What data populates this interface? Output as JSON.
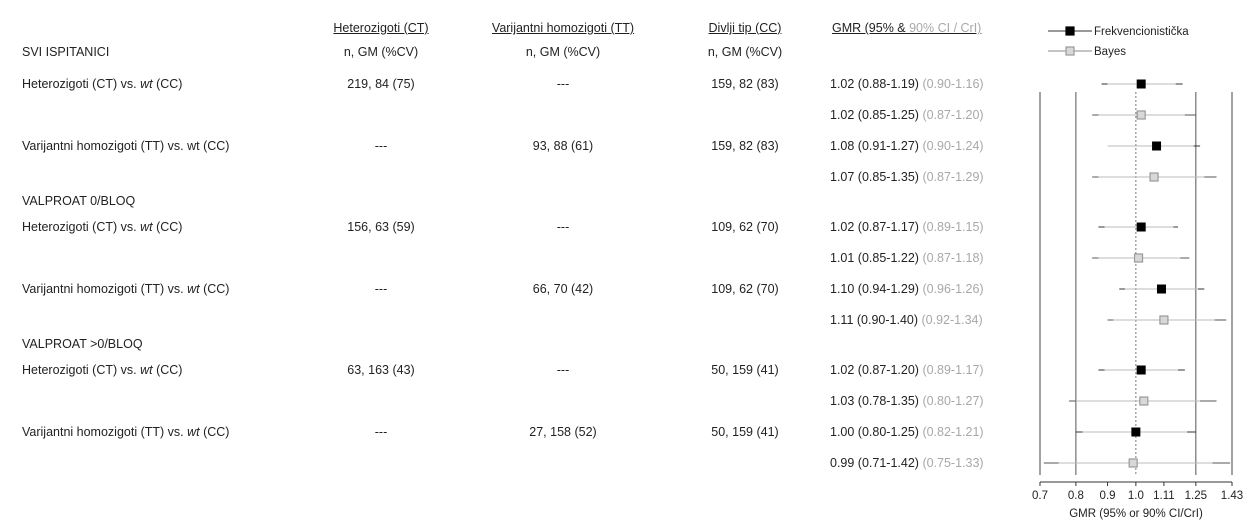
{
  "headers": {
    "col_het": "Heterozigoti (CT)",
    "col_hom": "Varijantni homozigoti (TT)",
    "col_wt": "Divlji tip (CC)",
    "col_gmr_a": "GMR (95% & ",
    "col_gmr_b": "90% CI / CrI)",
    "sub_het": "n, GM (%CV)",
    "sub_hom": "n, GM (%CV)",
    "sub_wt": "n, GM (%CV)"
  },
  "sections": [
    {
      "title": "SVI ISPITANICI",
      "rows": [
        {
          "label_a": "Heterozigoti (CT) vs. ",
          "label_i": "wt",
          "label_b": " (CC)",
          "het": "219, 84 (75)",
          "hom": "---",
          "wt": "159, 82 (83)",
          "freq_main": "1.02 (0.88-1.19)",
          "freq_90": "(0.90-1.16)",
          "bay_main": "1.02 (0.85-1.25)",
          "bay_90": "(0.87-1.20)"
        },
        {
          "label_a": "Varijantni homozigoti (TT) vs. wt (CC)",
          "label_i": "",
          "label_b": "",
          "het": "---",
          "hom": "93, 88 (61)",
          "wt": "159, 82 (83)",
          "freq_main": "1.08 (0.91-1.27)",
          "freq_90": "(0.90-1.24)",
          "bay_main": "1.07 (0.85-1.35)",
          "bay_90": "(0.87-1.29)"
        }
      ]
    },
    {
      "title": "VALPROAT  0/BLOQ",
      "rows": [
        {
          "label_a": "Heterozigoti (CT) vs. ",
          "label_i": "wt",
          "label_b": " (CC)",
          "het": "156, 63 (59)",
          "hom": "---",
          "wt": "109, 62 (70)",
          "freq_main": "1.02 (0.87-1.17)",
          "freq_90": "(0.89-1.15)",
          "bay_main": "1.01 (0.85-1.22)",
          "bay_90": "(0.87-1.18)"
        },
        {
          "label_a": "Varijantni homozigoti (TT) vs. ",
          "label_i": "wt",
          "label_b": " (CC)",
          "het": "---",
          "hom": "66, 70 (42)",
          "wt": "109, 62 (70)",
          "freq_main": "1.10 (0.94-1.29)",
          "freq_90": "(0.96-1.26)",
          "bay_main": "1.11 (0.90-1.40)",
          "bay_90": "(0.92-1.34)"
        }
      ]
    },
    {
      "title": "VALPROAT  >0/BLOQ",
      "rows": [
        {
          "label_a": "Heterozigoti (CT) vs. ",
          "label_i": "wt",
          "label_b": " (CC)",
          "het": "63, 163 (43)",
          "hom": "---",
          "wt": "50, 159 (41)",
          "freq_main": "1.02 (0.87-1.20)",
          "freq_90": "(0.89-1.17)",
          "bay_main": "1.03 (0.78-1.35)",
          "bay_90": "(0.80-1.27)"
        },
        {
          "label_a": "Varijantni homozigoti (TT) vs. ",
          "label_i": "wt",
          "label_b": " (CC)",
          "het": "---",
          "hom": "27, 158 (52)",
          "wt": "50, 159 (41)",
          "freq_main": "1.00 (0.80-1.25)",
          "freq_90": "(0.82-1.21)",
          "bay_main": "0.99 (0.71-1.42)",
          "bay_90": "(0.75-1.33)"
        }
      ]
    }
  ],
  "chart_data": {
    "type": "scatter",
    "xlabel": "GMR (95% or 90% CI/CrI)",
    "xscale": "log",
    "xlim": [
      0.7,
      1.43
    ],
    "xticks": [
      0.7,
      0.8,
      0.9,
      1.0,
      1.11,
      1.25,
      1.43
    ],
    "xtick_labels": [
      "0.7",
      "0.8",
      "0.9",
      "1.0",
      "1.11",
      "1.25",
      "1.43"
    ],
    "reference_lines": [
      0.8,
      1.0,
      1.25
    ],
    "legend": {
      "placement": "top",
      "entries": [
        {
          "name": "Frekvencionistička",
          "marker": "filled-square",
          "color": "#000000"
        },
        {
          "name": "Bayes",
          "marker": "open-square",
          "color": "#9a9a9a"
        }
      ]
    },
    "series": [
      {
        "name": "Frekvencionistička",
        "points": [
          {
            "est": 1.02,
            "ci95": [
              0.88,
              1.19
            ],
            "ci90": [
              0.9,
              1.16
            ]
          },
          {
            "est": 1.08,
            "ci95": [
              0.91,
              1.27
            ],
            "ci90": [
              0.9,
              1.24
            ]
          },
          {
            "est": 1.02,
            "ci95": [
              0.87,
              1.17
            ],
            "ci90": [
              0.89,
              1.15
            ]
          },
          {
            "est": 1.1,
            "ci95": [
              0.94,
              1.29
            ],
            "ci90": [
              0.96,
              1.26
            ]
          },
          {
            "est": 1.02,
            "ci95": [
              0.87,
              1.2
            ],
            "ci90": [
              0.89,
              1.17
            ]
          },
          {
            "est": 1.0,
            "ci95": [
              0.8,
              1.25
            ],
            "ci90": [
              0.82,
              1.21
            ]
          }
        ]
      },
      {
        "name": "Bayes",
        "points": [
          {
            "est": 1.02,
            "ci95": [
              0.85,
              1.25
            ],
            "ci90": [
              0.87,
              1.2
            ]
          },
          {
            "est": 1.07,
            "ci95": [
              0.85,
              1.35
            ],
            "ci90": [
              0.87,
              1.29
            ]
          },
          {
            "est": 1.01,
            "ci95": [
              0.85,
              1.22
            ],
            "ci90": [
              0.87,
              1.18
            ]
          },
          {
            "est": 1.11,
            "ci95": [
              0.9,
              1.4
            ],
            "ci90": [
              0.92,
              1.34
            ]
          },
          {
            "est": 1.03,
            "ci95": [
              0.78,
              1.35
            ],
            "ci90": [
              0.8,
              1.27
            ]
          },
          {
            "est": 0.99,
            "ci95": [
              0.71,
              1.42
            ],
            "ci90": [
              0.75,
              1.33
            ]
          }
        ]
      }
    ]
  }
}
